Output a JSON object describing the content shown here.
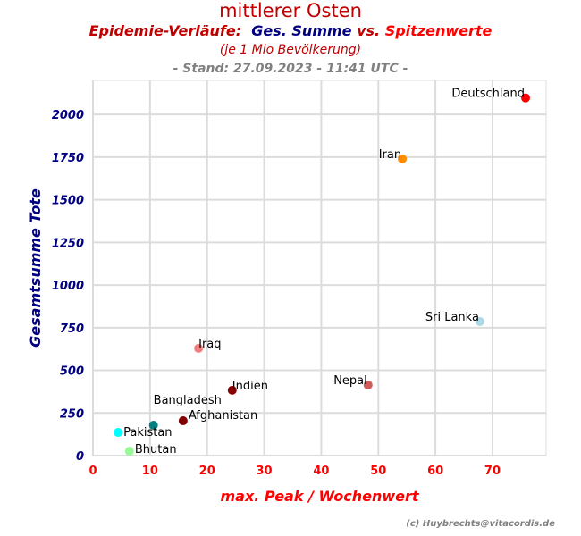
{
  "chart_data": {
    "type": "scatter",
    "title": "mittlerer Osten",
    "subtitle": {
      "part1": "Epidemie-Verläufe:",
      "part2": "Ges. Summe",
      "part3": "vs.",
      "part4": "Spitzenwerte"
    },
    "subtitle2": "(je 1 Mio Bevölkerung)",
    "subtitle3": "- Stand: 27.09.2023 - 11:41 UTC -",
    "xlabel": "max. Peak / Wochenwert",
    "ylabel": "Gesamtsumme Tote",
    "xlim": [
      0,
      79.4
    ],
    "ylim": [
      0,
      2200
    ],
    "xticks": [
      0,
      10,
      20,
      30,
      40,
      50,
      60,
      70
    ],
    "yticks": [
      0,
      250,
      500,
      750,
      1000,
      1250,
      1500,
      1750,
      2000
    ],
    "grid": true,
    "colors": {
      "title": "#c00000",
      "blue": "#000080",
      "red": "#ff0000",
      "x_tick": "#ff0000",
      "y_tick": "#000080"
    },
    "points": [
      {
        "label": "Deutschland",
        "x": 75.8,
        "y": 2097,
        "color": "#ff0000",
        "label_side": "left"
      },
      {
        "label": "Iran",
        "x": 54.2,
        "y": 1740,
        "color": "#ff8c00",
        "label_side": "left"
      },
      {
        "label": "Sri Lanka",
        "x": 67.8,
        "y": 786,
        "color": "#add8e6",
        "label_side": "left"
      },
      {
        "label": "Iraq",
        "x": 18.5,
        "y": 629,
        "color": "#f08080",
        "label_side": "right"
      },
      {
        "label": "Nepal",
        "x": 48.2,
        "y": 414,
        "color": "#cd5c5c",
        "label_side": "left"
      },
      {
        "label": "Indien",
        "x": 24.4,
        "y": 383,
        "color": "#8b0000",
        "label_side": "right"
      },
      {
        "label": "Afghanistan",
        "x": 15.8,
        "y": 204,
        "color": "#800000",
        "label_side": "right"
      },
      {
        "label": "Bangladesh",
        "x": 10.6,
        "y": 178,
        "color": "#008080",
        "label_side": "right"
      },
      {
        "label": "Pakistan",
        "x": 4.4,
        "y": 136,
        "color": "#00ffff",
        "label_side": "right"
      },
      {
        "label": "Bhutan",
        "x": 6.4,
        "y": 26,
        "color": "#98fb98",
        "label_side": "right"
      }
    ]
  },
  "credit": "(c) Huybrechts@vitacordis.de"
}
